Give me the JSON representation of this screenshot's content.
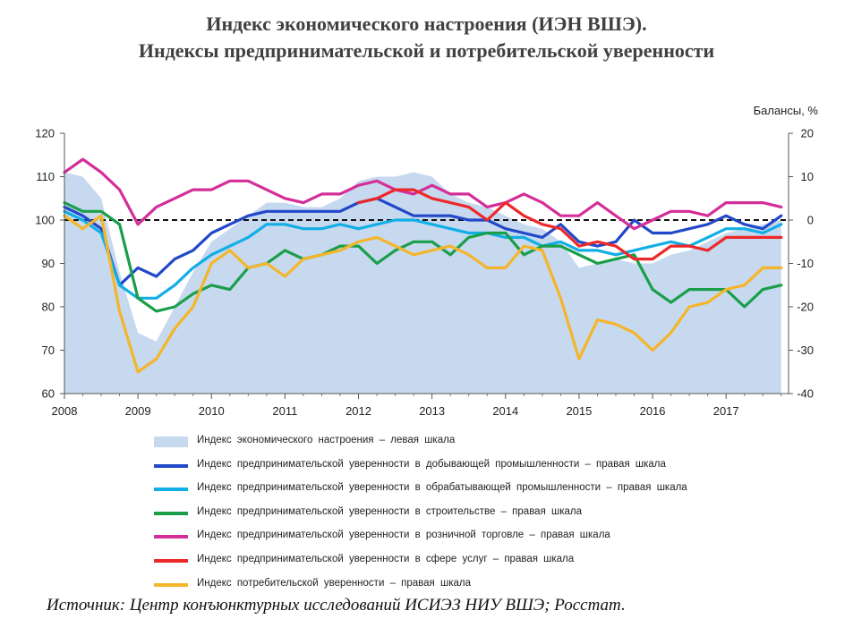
{
  "title_line1": "Индекс экономического настроения (ИЭН ВШЭ).",
  "title_line2": "Индексы предпринимательской и потребительской уверенности",
  "right_axis_label": "Балансы, %",
  "source": "Источник: Центр конъюнктурных исследований ИСИЭЗ НИУ ВШЭ; Росстат.",
  "chart_data": {
    "type": "line",
    "x_labels": [
      "2008",
      "2009",
      "2010",
      "2011",
      "2012",
      "2013",
      "2014",
      "2015",
      "2016",
      "2017"
    ],
    "x": [
      2008.0,
      2008.25,
      2008.5,
      2008.75,
      2009.0,
      2009.25,
      2009.5,
      2009.75,
      2010.0,
      2010.25,
      2010.5,
      2010.75,
      2011.0,
      2011.25,
      2011.5,
      2011.75,
      2012.0,
      2012.25,
      2012.5,
      2012.75,
      2013.0,
      2013.25,
      2013.5,
      2013.75,
      2014.0,
      2014.25,
      2014.5,
      2014.75,
      2015.0,
      2015.25,
      2015.5,
      2015.75,
      2016.0,
      2016.25,
      2016.5,
      2016.75,
      2017.0,
      2017.25,
      2017.5,
      2017.75
    ],
    "left_axis": {
      "min": 60,
      "max": 120,
      "ticks": [
        60,
        70,
        80,
        90,
        100,
        110,
        120
      ]
    },
    "right_axis": {
      "min": -40,
      "max": 20,
      "ticks": [
        -40,
        -30,
        -20,
        -10,
        0,
        10,
        20
      ],
      "label": "Балансы, %"
    },
    "reference_line": {
      "value": 0,
      "axis": "right",
      "style": "dashed"
    },
    "area": {
      "name": "Индекс экономического настроения – левая шкала",
      "axis": "left",
      "color": "#c6d9ef",
      "values": [
        111,
        110,
        105,
        88,
        74,
        72,
        80,
        88,
        95,
        98,
        101,
        104,
        104,
        103,
        103,
        105,
        109,
        110,
        110,
        111,
        110,
        106,
        104,
        103,
        101,
        99,
        98,
        95,
        89,
        90,
        91,
        90,
        90,
        92,
        93,
        95,
        97,
        98,
        99,
        100
      ]
    },
    "series": [
      {
        "name": "Индекс предпринимательской уверенности в добывающей промышленности – правая шкала",
        "axis": "right",
        "color": "#2148c8",
        "values": [
          3,
          1,
          -2,
          -15,
          -11,
          -13,
          -9,
          -7,
          -3,
          -1,
          1,
          2,
          2,
          2,
          2,
          2,
          4,
          5,
          3,
          1,
          1,
          1,
          0,
          0,
          -2,
          -3,
          -4,
          -1,
          -5,
          -6,
          -5,
          0,
          -3,
          -3,
          -2,
          -1,
          1,
          -1,
          -2,
          1
        ]
      },
      {
        "name": "Индекс предпринимательской уверенности в обрабатывающей промышленности – правая шкала",
        "axis": "right",
        "color": "#12aee6",
        "values": [
          2,
          0,
          -3,
          -15,
          -18,
          -18,
          -15,
          -11,
          -8,
          -6,
          -4,
          -1,
          -1,
          -2,
          -2,
          -1,
          -2,
          -1,
          0,
          0,
          -1,
          -2,
          -3,
          -3,
          -4,
          -4,
          -6,
          -5,
          -7,
          -7,
          -8,
          -7,
          -6,
          -5,
          -6,
          -4,
          -2,
          -2,
          -3,
          -1
        ]
      },
      {
        "name": "Индекс предпринимательской уверенности в строительстве – правая шкала",
        "axis": "right",
        "color": "#1a9e4a",
        "values": [
          4,
          2,
          2,
          -1,
          -18,
          -21,
          -20,
          -17,
          -15,
          -16,
          -11,
          -10,
          -7,
          -9,
          -8,
          -6,
          -6,
          -10,
          -7,
          -5,
          -5,
          -8,
          -4,
          -3,
          -3,
          -8,
          -6,
          -6,
          -8,
          -10,
          -9,
          -8,
          -16,
          -19,
          -16,
          -16,
          -16,
          -20,
          -16,
          -15
        ]
      },
      {
        "name": "Индекс предпринимательской уверенности в розничной торговле – правая шкала",
        "axis": "right",
        "color": "#d42e98",
        "values": [
          11,
          14,
          11,
          7,
          -1,
          3,
          5,
          7,
          7,
          9,
          9,
          7,
          5,
          4,
          6,
          6,
          8,
          9,
          7,
          6,
          8,
          6,
          6,
          3,
          4,
          6,
          4,
          1,
          1,
          4,
          1,
          -2,
          0,
          2,
          2,
          1,
          4,
          4,
          4,
          3
        ]
      },
      {
        "name": "Индекс предпринимательской уверенности в сфере услуг – правая шкала",
        "axis": "right",
        "color": "#ee2828",
        "values": [
          null,
          null,
          null,
          null,
          null,
          null,
          null,
          null,
          null,
          null,
          null,
          null,
          null,
          null,
          null,
          null,
          4,
          5,
          7,
          7,
          5,
          4,
          3,
          0,
          4,
          1,
          -1,
          -2,
          -6,
          -5,
          -6,
          -9,
          -9,
          -6,
          -6,
          -7,
          -4,
          -4,
          -4,
          -4
        ]
      },
      {
        "name": "Индекс потребительской уверенности – правая шкала",
        "axis": "right",
        "color": "#f5b52a",
        "values": [
          1,
          -2,
          1,
          -21,
          -35,
          -32,
          -25,
          -20,
          -10,
          -7,
          -11,
          -10,
          -13,
          -9,
          -8,
          -7,
          -5,
          -4,
          -6,
          -8,
          -7,
          -6,
          -8,
          -11,
          -11,
          -6,
          -7,
          -18,
          -32,
          -23,
          -24,
          -26,
          -30,
          -26,
          -20,
          -19,
          -16,
          -15,
          -11,
          -11
        ]
      }
    ]
  }
}
